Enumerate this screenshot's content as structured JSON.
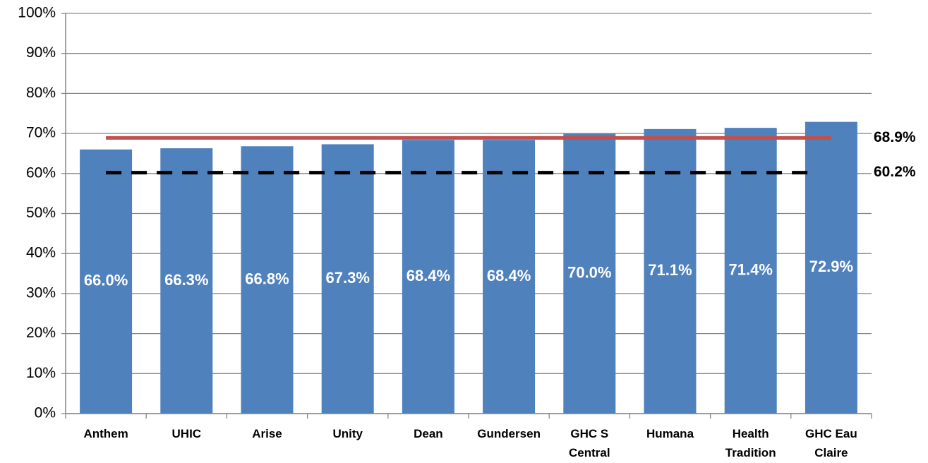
{
  "chart_data": {
    "type": "bar",
    "categories": [
      "Anthem",
      "UHIC",
      "Arise",
      "Unity",
      "Dean",
      "Gundersen",
      "GHC S Central",
      "Humana",
      "Health Tradition",
      "GHC Eau Claire"
    ],
    "values": [
      66.0,
      66.3,
      66.8,
      67.3,
      68.4,
      68.4,
      70.0,
      71.1,
      71.4,
      72.9
    ],
    "value_labels": [
      "66.0%",
      "66.3%",
      "66.8%",
      "67.3%",
      "68.4%",
      "68.4%",
      "70.0%",
      "71.1%",
      "71.4%",
      "72.9%"
    ],
    "color": "#4f81bd",
    "ylim": [
      0,
      100
    ],
    "yticks": [
      {
        "value": 0,
        "label": "0%"
      },
      {
        "value": 10,
        "label": "10%"
      },
      {
        "value": 20,
        "label": "20%"
      },
      {
        "value": 30,
        "label": "30%"
      },
      {
        "value": 40,
        "label": "40%"
      },
      {
        "value": 50,
        "label": "50%"
      },
      {
        "value": 60,
        "label": "60%"
      },
      {
        "value": 70,
        "label": "70%"
      },
      {
        "value": 80,
        "label": "80%"
      },
      {
        "value": 90,
        "label": "90%"
      },
      {
        "value": 100,
        "label": "100%"
      }
    ],
    "grid": true,
    "reference_lines": [
      {
        "value": 68.9,
        "label": "68.9%",
        "color": "#c0504d",
        "style": "solid"
      },
      {
        "value": 60.2,
        "label": "60.2%",
        "color": "#000000",
        "style": "dashed"
      }
    ]
  }
}
